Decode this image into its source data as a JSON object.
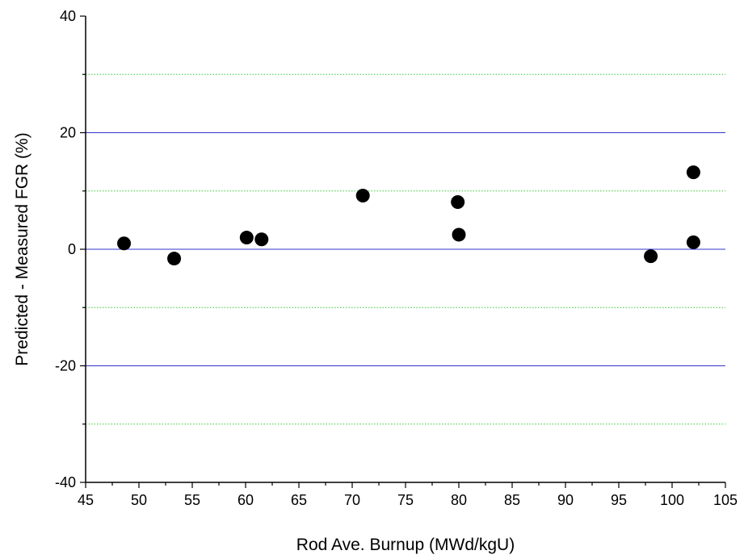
{
  "chart_data": {
    "type": "scatter",
    "title": "",
    "xlabel": "Rod Ave. Burnup (MWd/kgU)",
    "ylabel": "Predicted - Measured FGR (%)",
    "xlim": [
      45,
      105
    ],
    "ylim": [
      -40,
      40
    ],
    "x_ticks": [
      45,
      50,
      55,
      60,
      65,
      70,
      75,
      80,
      85,
      90,
      95,
      100,
      105
    ],
    "y_ticks": [
      -40,
      -20,
      0,
      20,
      40
    ],
    "major_grid_y": [
      -20,
      0,
      20
    ],
    "minor_grid_y": [
      -30,
      -10,
      10,
      30
    ],
    "grid": true,
    "colors": {
      "major_grid": "#3333cc",
      "minor_grid": "#33cc33",
      "marker": "#000000",
      "axis": "#000000"
    },
    "series": [
      {
        "name": "",
        "points": [
          {
            "x": 48.6,
            "y": 1.0
          },
          {
            "x": 53.3,
            "y": -1.6
          },
          {
            "x": 60.1,
            "y": 2.0
          },
          {
            "x": 61.5,
            "y": 1.7
          },
          {
            "x": 71.0,
            "y": 9.2
          },
          {
            "x": 79.9,
            "y": 8.1
          },
          {
            "x": 80.0,
            "y": 2.5
          },
          {
            "x": 98.0,
            "y": -1.2
          },
          {
            "x": 102.0,
            "y": 13.2
          },
          {
            "x": 102.0,
            "y": 1.2
          }
        ]
      }
    ]
  }
}
